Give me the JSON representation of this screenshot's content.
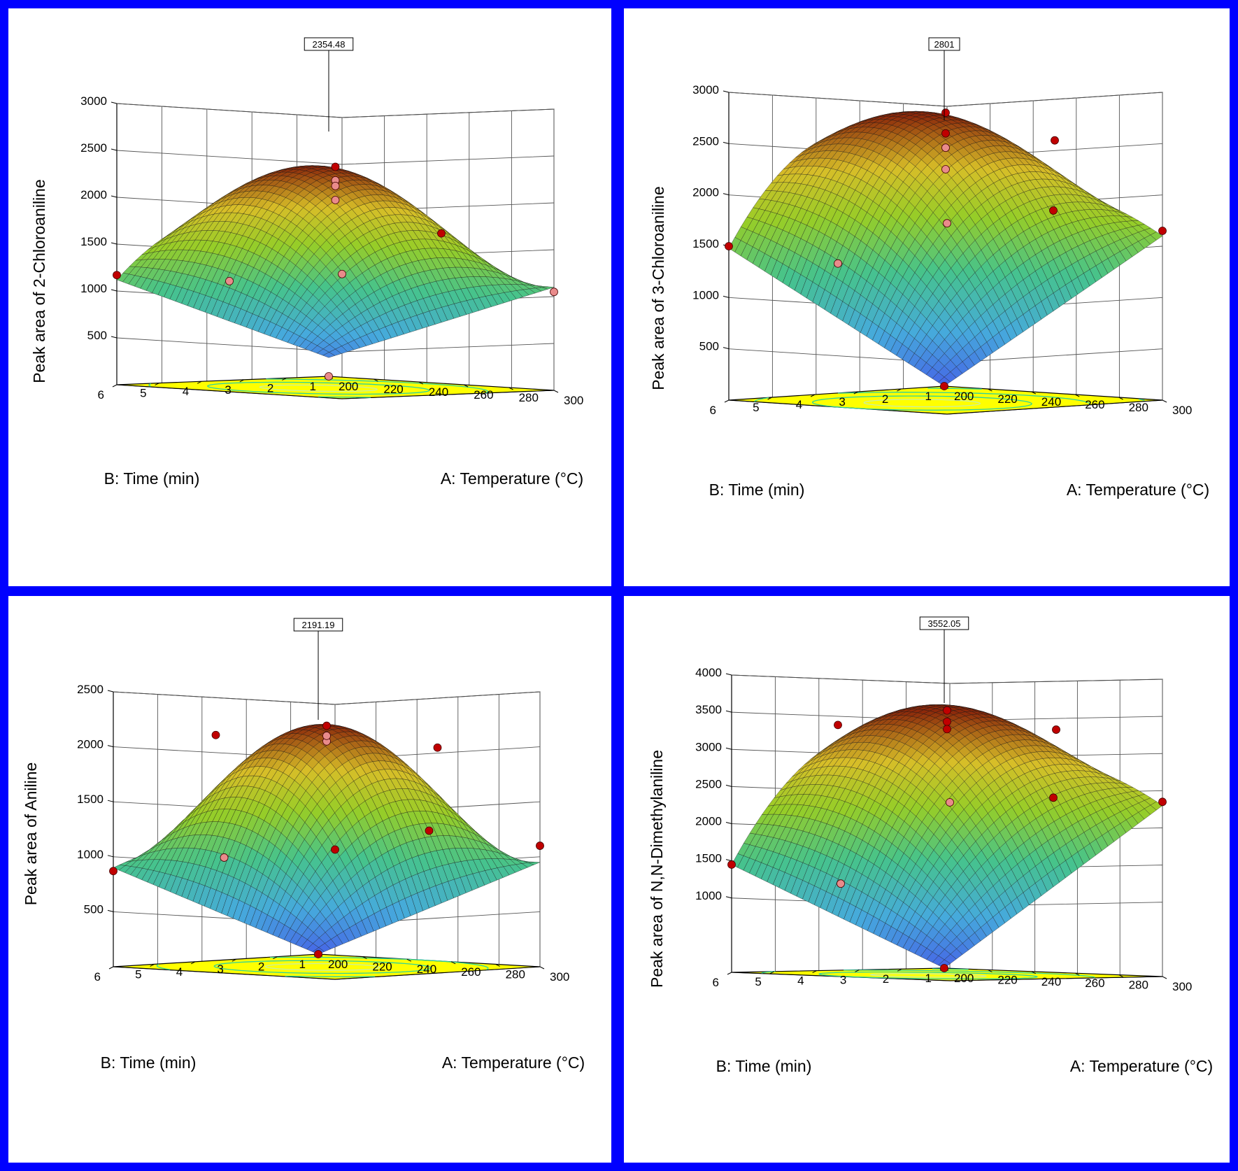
{
  "chart_data": [
    {
      "type": "surface",
      "zlabel": "Peak area of 2-Chloroaniline",
      "xlabel": "A: Temperature (°C)",
      "ylabel": "B: Time (min)",
      "x_ticks": [
        200,
        220,
        240,
        260,
        280,
        300
      ],
      "y_ticks": [
        1,
        2,
        3,
        4,
        5,
        6
      ],
      "z_ticks": [
        500,
        1000,
        1500,
        2000,
        2500,
        3000
      ],
      "xlim": [
        200,
        300
      ],
      "ylim": [
        1,
        6
      ],
      "zlim": [
        0,
        3000
      ],
      "max_label": "2354.48",
      "surface": {
        "peak_x": 250,
        "peak_y": 3.9,
        "peak_z": 2354.48,
        "corners": {
          "a_min_b_min": 200,
          "a_max_b_min": 1100,
          "a_min_b_max": 1120,
          "a_max_b_max": 1380
        }
      },
      "points": [
        {
          "x": 250,
          "y": 3.5,
          "z": 2354.48
        },
        {
          "x": 250,
          "y": 3.5,
          "z": 2210
        },
        {
          "x": 250,
          "y": 3.5,
          "z": 2150
        },
        {
          "x": 250,
          "y": 3.5,
          "z": 2000
        },
        {
          "x": 200,
          "y": 1,
          "z": 0
        },
        {
          "x": 300,
          "y": 1,
          "z": 1050
        },
        {
          "x": 200,
          "y": 6,
          "z": 1170
        },
        {
          "x": 300,
          "y": 6,
          "z": 1330
        },
        {
          "x": 250,
          "y": 1,
          "z": 1600
        },
        {
          "x": 250,
          "y": 6,
          "z": 1180
        }
      ]
    },
    {
      "type": "surface",
      "zlabel": "Peak area of 3-Chloroaniline",
      "xlabel": "A: Temperature (°C)",
      "ylabel": "B: Time (min)",
      "x_ticks": [
        200,
        220,
        240,
        260,
        280,
        300
      ],
      "y_ticks": [
        1,
        2,
        3,
        4,
        5,
        6
      ],
      "z_ticks": [
        500,
        1000,
        1500,
        2000,
        2500,
        3000
      ],
      "xlim": [
        200,
        300
      ],
      "ylim": [
        1,
        6
      ],
      "zlim": [
        0,
        3000
      ],
      "max_label": "2801",
      "surface": {
        "peak_x": 255,
        "peak_y": 4.3,
        "peak_z": 2801,
        "corners": {
          "a_min_b_min": 0,
          "a_max_b_min": 1600,
          "a_min_b_max": 1480,
          "a_max_b_max": 1780
        }
      },
      "points": [
        {
          "x": 250,
          "y": 3.5,
          "z": 2801
        },
        {
          "x": 250,
          "y": 3.5,
          "z": 2600
        },
        {
          "x": 250,
          "y": 3.5,
          "z": 2460
        },
        {
          "x": 250,
          "y": 3.5,
          "z": 2250
        },
        {
          "x": 200,
          "y": 1,
          "z": 0
        },
        {
          "x": 300,
          "y": 1,
          "z": 1650
        },
        {
          "x": 200,
          "y": 6,
          "z": 1500
        },
        {
          "x": 300,
          "y": 6,
          "z": 1860
        },
        {
          "x": 250,
          "y": 1,
          "z": 1780
        },
        {
          "x": 250,
          "y": 6,
          "z": 1400
        },
        {
          "x": 300,
          "y": 3.5,
          "z": 2600
        }
      ]
    },
    {
      "type": "surface",
      "zlabel": "Peak area of Aniline",
      "xlabel": "A: Temperature (°C)",
      "ylabel": "B: Time (min)",
      "x_ticks": [
        200,
        220,
        240,
        260,
        280,
        300
      ],
      "y_ticks": [
        1,
        2,
        3,
        4,
        5,
        6
      ],
      "z_ticks": [
        500,
        1000,
        1500,
        2000,
        2500
      ],
      "xlim": [
        200,
        300
      ],
      "ylim": [
        1,
        6
      ],
      "zlim": [
        0,
        2500
      ],
      "max_label": "2191.19",
      "surface": {
        "peak_x": 250,
        "peak_y": 3.6,
        "peak_z": 2191.19,
        "corners": {
          "a_min_b_min": 0,
          "a_max_b_min": 950,
          "a_min_b_max": 900,
          "a_max_b_max": 1150
        }
      },
      "points": [
        {
          "x": 250,
          "y": 3.5,
          "z": 2191.19
        },
        {
          "x": 250,
          "y": 3.5,
          "z": 2050
        },
        {
          "x": 250,
          "y": 3.5,
          "z": 2100
        },
        {
          "x": 200,
          "y": 1,
          "z": 0
        },
        {
          "x": 300,
          "y": 1,
          "z": 1100
        },
        {
          "x": 200,
          "y": 6,
          "z": 870
        },
        {
          "x": 300,
          "y": 6,
          "z": 1180
        },
        {
          "x": 250,
          "y": 1,
          "z": 1180
        },
        {
          "x": 250,
          "y": 6,
          "z": 1050
        },
        {
          "x": 200,
          "y": 3.5,
          "z": 2050
        },
        {
          "x": 300,
          "y": 3.5,
          "z": 2050
        }
      ]
    },
    {
      "type": "surface",
      "zlabel": "Peak area of N,N-Dimethylaniline",
      "xlabel": "A: Temperature (°C)",
      "ylabel": "B: Time (min)",
      "x_ticks": [
        200,
        220,
        240,
        260,
        280,
        300
      ],
      "y_ticks": [
        1,
        2,
        3,
        4,
        5,
        6
      ],
      "z_ticks": [
        1000,
        1500,
        2000,
        2500,
        3000,
        3500,
        4000
      ],
      "xlim": [
        200,
        300
      ],
      "ylim": [
        1,
        6
      ],
      "zlim": [
        0,
        4000
      ],
      "max_label": "3552.05",
      "surface": {
        "peak_x": 255,
        "peak_y": 4.2,
        "peak_z": 3552.05,
        "corners": {
          "a_min_b_min": 0,
          "a_max_b_min": 2300,
          "a_min_b_max": 1450,
          "a_max_b_max": 2450
        }
      },
      "points": [
        {
          "x": 250,
          "y": 3.5,
          "z": 3552.05
        },
        {
          "x": 250,
          "y": 3.5,
          "z": 3400
        },
        {
          "x": 250,
          "y": 3.5,
          "z": 3300
        },
        {
          "x": 200,
          "y": 1,
          "z": 0
        },
        {
          "x": 300,
          "y": 1,
          "z": 2350
        },
        {
          "x": 200,
          "y": 6,
          "z": 1450
        },
        {
          "x": 300,
          "y": 6,
          "z": 2400
        },
        {
          "x": 250,
          "y": 1,
          "z": 2350
        },
        {
          "x": 250,
          "y": 6,
          "z": 1250
        },
        {
          "x": 200,
          "y": 3.5,
          "z": 3300
        },
        {
          "x": 300,
          "y": 3.5,
          "z": 3350
        }
      ]
    }
  ]
}
